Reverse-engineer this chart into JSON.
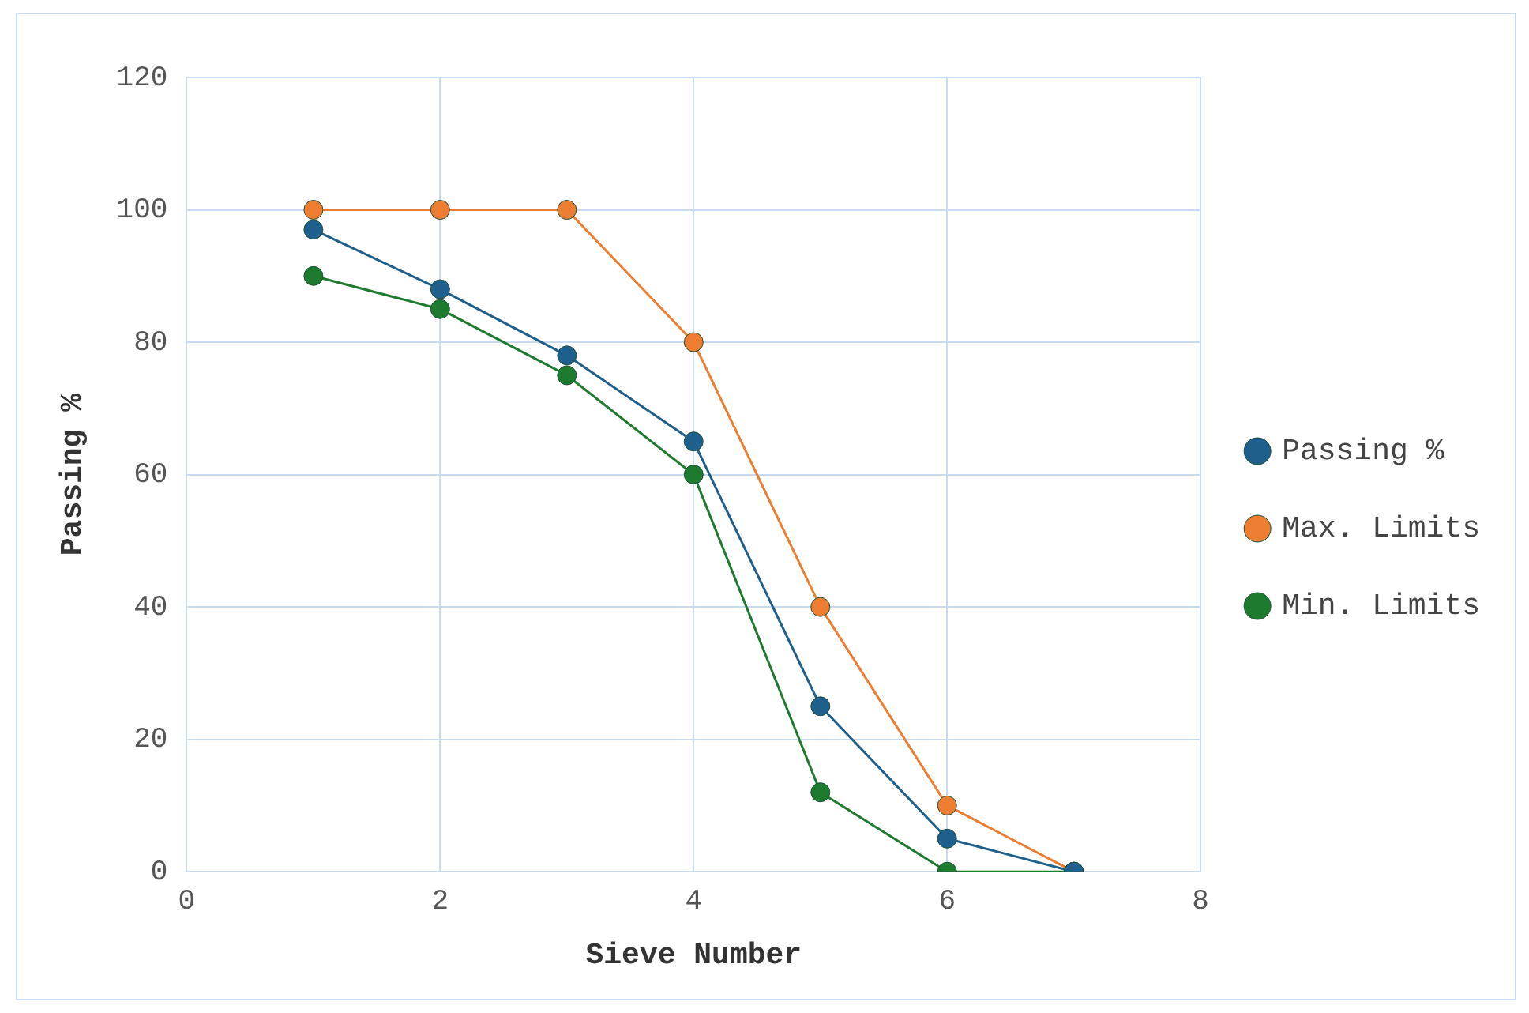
{
  "chart_data": {
    "type": "line",
    "xlabel": "Sieve Number",
    "ylabel": "Passing %",
    "x": [
      1,
      2,
      3,
      4,
      5,
      6,
      7
    ],
    "series": [
      {
        "name": "Passing %",
        "color": "#1f5f8b",
        "values": [
          97,
          88,
          78,
          65,
          25,
          5,
          0
        ]
      },
      {
        "name": "Max. Limits",
        "color": "#ed7d31",
        "values": [
          100,
          100,
          100,
          80,
          40,
          10,
          0
        ]
      },
      {
        "name": "Min. Limits",
        "color": "#1e7a2e",
        "values": [
          90,
          85,
          75,
          60,
          12,
          0,
          0
        ]
      }
    ],
    "xlim": [
      0,
      8
    ],
    "xticks": [
      0,
      2,
      4,
      6,
      8
    ],
    "ylim": [
      0,
      120
    ],
    "yticks": [
      0,
      20,
      40,
      60,
      80,
      100,
      120
    ],
    "grid": true,
    "legend": "right",
    "marker": "circle",
    "line_style": "solid"
  }
}
